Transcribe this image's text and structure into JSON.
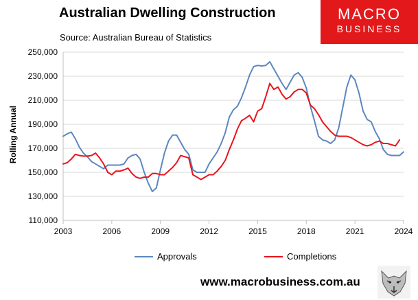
{
  "header": {
    "title": "Australian Dwelling Construction",
    "source": "Source: Australian Bureau of Statistics"
  },
  "brand": {
    "line1": "MACRO",
    "line2": "BUSINESS",
    "url": "www.macrobusiness.com.au",
    "color": "#e2181b"
  },
  "chart_data": {
    "type": "line",
    "title": "Australian Dwelling Construction",
    "ylabel": "Rolling Annual",
    "xlabel": "",
    "ylim": [
      110000,
      250000
    ],
    "xlim": [
      2003,
      2024
    ],
    "yticks": [
      110000,
      130000,
      150000,
      170000,
      190000,
      210000,
      230000,
      250000
    ],
    "ytick_labels": [
      "110,000",
      "130,000",
      "150,000",
      "170,000",
      "190,000",
      "210,000",
      "230,000",
      "250,000"
    ],
    "xticks": [
      2003,
      2006,
      2009,
      2012,
      2015,
      2018,
      2021,
      2024
    ],
    "xtick_labels": [
      "2003",
      "2006",
      "2009",
      "2012",
      "2015",
      "2018",
      "2021",
      "2024"
    ],
    "grid": true,
    "legend_position": "bottom",
    "series": [
      {
        "name": "Approvals",
        "color": "#5b87bf",
        "x": [
          2003.0,
          2003.25,
          2003.5,
          2003.75,
          2004.0,
          2004.25,
          2004.5,
          2004.75,
          2005.0,
          2005.25,
          2005.5,
          2005.75,
          2006.0,
          2006.25,
          2006.5,
          2006.75,
          2007.0,
          2007.25,
          2007.5,
          2007.75,
          2008.0,
          2008.25,
          2008.5,
          2008.75,
          2009.0,
          2009.25,
          2009.5,
          2009.75,
          2010.0,
          2010.25,
          2010.5,
          2010.75,
          2011.0,
          2011.25,
          2011.5,
          2011.75,
          2012.0,
          2012.25,
          2012.5,
          2012.75,
          2013.0,
          2013.25,
          2013.5,
          2013.75,
          2014.0,
          2014.25,
          2014.5,
          2014.75,
          2015.0,
          2015.25,
          2015.5,
          2015.75,
          2016.0,
          2016.25,
          2016.5,
          2016.75,
          2017.0,
          2017.25,
          2017.5,
          2017.75,
          2018.0,
          2018.25,
          2018.5,
          2018.75,
          2019.0,
          2019.25,
          2019.5,
          2019.75,
          2020.0,
          2020.25,
          2020.5,
          2020.75,
          2021.0,
          2021.25,
          2021.5,
          2021.75,
          2022.0,
          2022.25,
          2022.5,
          2022.75,
          2023.0,
          2023.25,
          2023.5,
          2023.75,
          2024.0
        ],
        "y": [
          180000,
          182000,
          183500,
          178000,
          171000,
          166000,
          163000,
          159000,
          157000,
          155000,
          153000,
          156000,
          156000,
          156000,
          156000,
          157000,
          162000,
          164000,
          165000,
          161000,
          150000,
          141000,
          134000,
          137000,
          152000,
          166000,
          176000,
          181000,
          181000,
          175000,
          169000,
          165000,
          152000,
          150000,
          150000,
          150000,
          157000,
          162000,
          167000,
          174000,
          183000,
          196000,
          202000,
          205000,
          212000,
          221000,
          231000,
          238000,
          239000,
          238500,
          239000,
          242000,
          236000,
          230000,
          224000,
          219000,
          225000,
          231000,
          233000,
          229000,
          220000,
          205000,
          193000,
          180000,
          177000,
          176000,
          174000,
          177000,
          187000,
          204000,
          221000,
          231000,
          227000,
          216000,
          201000,
          194000,
          192000,
          184000,
          178000,
          169000,
          165000,
          164000,
          164000,
          164000,
          167000
        ]
      },
      {
        "name": "Completions",
        "color": "#e8141c",
        "x": [
          2003.0,
          2003.25,
          2003.5,
          2003.75,
          2004.0,
          2004.25,
          2004.5,
          2004.75,
          2005.0,
          2005.25,
          2005.5,
          2005.75,
          2006.0,
          2006.25,
          2006.5,
          2006.75,
          2007.0,
          2007.25,
          2007.5,
          2007.75,
          2008.0,
          2008.25,
          2008.5,
          2008.75,
          2009.0,
          2009.25,
          2009.5,
          2009.75,
          2010.0,
          2010.25,
          2010.5,
          2010.75,
          2011.0,
          2011.25,
          2011.5,
          2011.75,
          2012.0,
          2012.25,
          2012.5,
          2012.75,
          2013.0,
          2013.25,
          2013.5,
          2013.75,
          2014.0,
          2014.25,
          2014.5,
          2014.75,
          2015.0,
          2015.25,
          2015.5,
          2015.75,
          2016.0,
          2016.25,
          2016.5,
          2016.75,
          2017.0,
          2017.25,
          2017.5,
          2017.75,
          2018.0,
          2018.25,
          2018.5,
          2018.75,
          2019.0,
          2019.25,
          2019.5,
          2019.75,
          2020.0,
          2020.25,
          2020.5,
          2020.75,
          2021.0,
          2021.25,
          2021.5,
          2021.75,
          2022.0,
          2022.25,
          2022.5,
          2022.75,
          2023.0,
          2023.25,
          2023.5,
          2023.75
        ],
        "y": [
          157000,
          158000,
          161000,
          165000,
          164000,
          163500,
          163500,
          164000,
          166000,
          162000,
          157000,
          150000,
          148000,
          151000,
          151000,
          152000,
          153500,
          149000,
          146000,
          145000,
          146000,
          146000,
          149000,
          149000,
          148000,
          148000,
          151000,
          154000,
          158000,
          164000,
          163000,
          162000,
          148000,
          146000,
          144000,
          146000,
          148000,
          148000,
          151000,
          155000,
          160000,
          169000,
          177000,
          186000,
          193000,
          195000,
          197500,
          192000,
          201000,
          203000,
          213000,
          224000,
          219000,
          221000,
          215000,
          211000,
          213000,
          217000,
          219000,
          219000,
          216000,
          206000,
          203000,
          198000,
          192000,
          188000,
          184000,
          181000,
          180000,
          180000,
          180000,
          179000,
          177000,
          175000,
          173000,
          172000,
          173000,
          175000,
          176000,
          174000,
          174000,
          173000,
          172000,
          177000
        ]
      }
    ]
  }
}
